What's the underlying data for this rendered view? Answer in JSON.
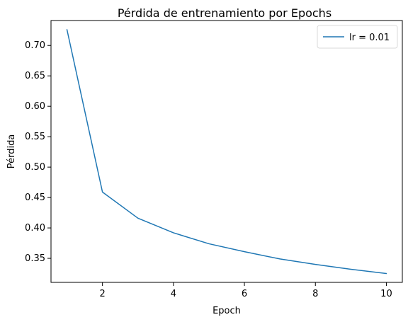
{
  "chart_data": {
    "type": "line",
    "title": "Pérdida de entrenamiento por Epochs",
    "xlabel": "Epoch",
    "ylabel": "Pérdida",
    "xlim": [
      0.55,
      10.45
    ],
    "ylim": [
      0.3105,
      0.741
    ],
    "xticks": [
      2,
      4,
      6,
      8,
      10
    ],
    "xtick_labels": [
      "2",
      "4",
      "6",
      "8",
      "10"
    ],
    "yticks": [
      0.35,
      0.4,
      0.45,
      0.5,
      0.55,
      0.6,
      0.65,
      0.7
    ],
    "ytick_labels": [
      "0.35",
      "0.40",
      "0.45",
      "0.50",
      "0.55",
      "0.60",
      "0.65",
      "0.70"
    ],
    "grid": false,
    "legend_position": "top-right",
    "series": [
      {
        "name": "lr = 0.01",
        "color": "#1f77b4",
        "x": [
          1,
          2,
          3,
          4,
          5,
          6,
          7,
          8,
          9,
          10
        ],
        "values": [
          0.726,
          0.459,
          0.416,
          0.392,
          0.374,
          0.361,
          0.349,
          0.34,
          0.332,
          0.325
        ]
      }
    ]
  }
}
